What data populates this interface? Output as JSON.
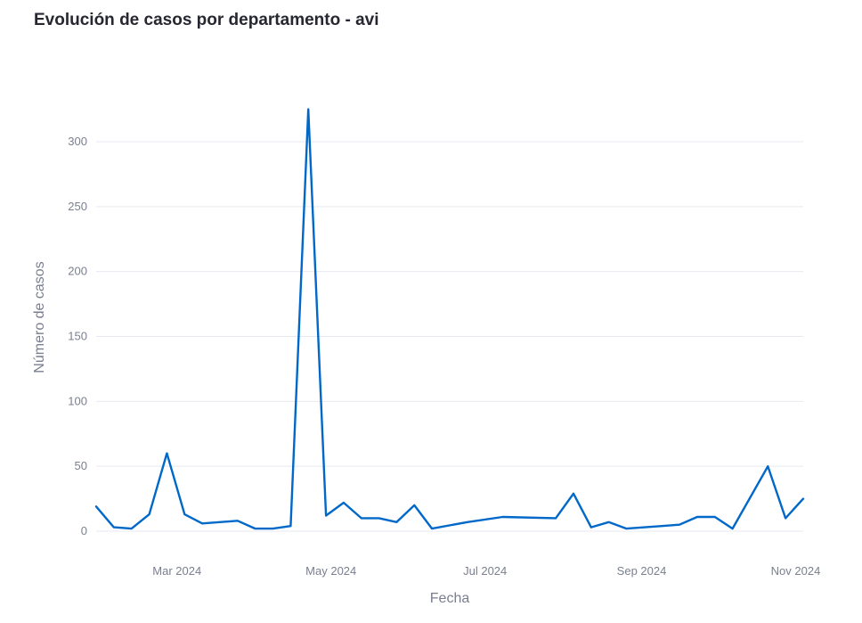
{
  "chart_data": {
    "type": "line",
    "title": "Evolución de casos por departamento - avi",
    "xlabel": "Fecha",
    "ylabel": "Número de casos",
    "xlim": [
      "2024-01-29",
      "2024-11-04"
    ],
    "ylim": [
      0,
      335
    ],
    "grid": true,
    "color": "#0068c9",
    "x_ticks": [
      {
        "label": "Mar 2024",
        "date": "2024-03-01"
      },
      {
        "label": "May 2024",
        "date": "2024-05-01"
      },
      {
        "label": "Jul 2024",
        "date": "2024-07-01"
      },
      {
        "label": "Sep 2024",
        "date": "2024-09-01"
      },
      {
        "label": "Nov 2024",
        "date": "2024-11-01"
      }
    ],
    "y_ticks": [
      0,
      50,
      100,
      150,
      200,
      250,
      300
    ],
    "series": [
      {
        "x": [
          "2024-01-29",
          "2024-02-05",
          "2024-02-12",
          "2024-02-19",
          "2024-02-26",
          "2024-03-04",
          "2024-03-11",
          "2024-03-25",
          "2024-04-01",
          "2024-04-08",
          "2024-04-15",
          "2024-04-22",
          "2024-04-29",
          "2024-05-06",
          "2024-05-13",
          "2024-05-20",
          "2024-05-27",
          "2024-06-03",
          "2024-06-10",
          "2024-06-24",
          "2024-07-08",
          "2024-07-29",
          "2024-08-05",
          "2024-08-12",
          "2024-08-19",
          "2024-08-26",
          "2024-09-09",
          "2024-09-16",
          "2024-09-23",
          "2024-09-30",
          "2024-10-07",
          "2024-10-21",
          "2024-10-28",
          "2024-11-04"
        ],
        "y": [
          19,
          3,
          2,
          13,
          60,
          13,
          6,
          8,
          2,
          2,
          4,
          325,
          12,
          22,
          10,
          10,
          7,
          20,
          2,
          7,
          11,
          10,
          29,
          3,
          7,
          2,
          4,
          5,
          11,
          11,
          2,
          50,
          10,
          25
        ]
      }
    ]
  }
}
